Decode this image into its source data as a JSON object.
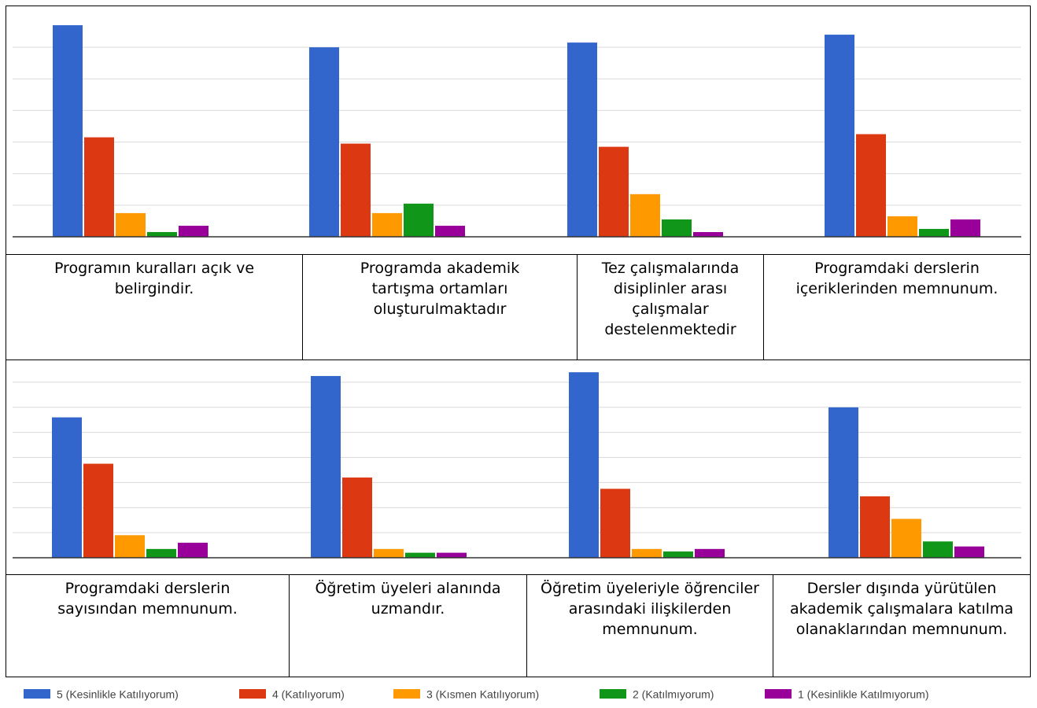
{
  "chart_data": [
    {
      "type": "bar",
      "categories": [
        "Programın kuralları açık ve belirgindir.",
        "Programda akademik tartışma ortamları oluşturulmaktadır",
        "Tez çalışmalarında disiplinler arası çalışmalar destelenmektedir",
        "Programdaki derslerin içeriklerinden memnunum."
      ],
      "series": [
        {
          "name": "5 (Kesinlikle Katılıyorum)",
          "color": "#3366cc",
          "values": [
            67,
            60,
            61.5,
            64
          ]
        },
        {
          "name": "4 (Katılıyorum)",
          "color": "#dc3912",
          "values": [
            31.5,
            29.5,
            28.5,
            32.5
          ]
        },
        {
          "name": "3 (Kısmen Katılıyorum)",
          "color": "#ff9900",
          "values": [
            7.5,
            7.5,
            13.5,
            6.5
          ]
        },
        {
          "name": "2 (Katılmıyorum)",
          "color": "#109618",
          "values": [
            1.5,
            10.5,
            5.5,
            2.5
          ]
        },
        {
          "name": "1 (Kesinlikle Katılmıyorum)",
          "color": "#990099",
          "values": [
            3.5,
            3.5,
            1.5,
            5.5
          ]
        }
      ],
      "ylim": [
        0,
        70
      ],
      "grid": true
    },
    {
      "type": "bar",
      "categories": [
        "Programdaki derslerin sayısından memnunum.",
        "Öğretim üyeleri alanında uzmandır.",
        "Öğretim üyeleriyle öğrenciler arasındaki ilişkilerden memnunum.",
        "Dersler dışında yürütülen akademik çalışmalara katılma olanaklarından memnunum."
      ],
      "series": [
        {
          "name": "5 (Kesinlikle Katılıyorum)",
          "color": "#3366cc",
          "values": [
            56,
            72.5,
            74,
            60
          ]
        },
        {
          "name": "4 (Katılıyorum)",
          "color": "#dc3912",
          "values": [
            37.5,
            32,
            27.5,
            24.5
          ]
        },
        {
          "name": "3 (Kısmen Katılıyorum)",
          "color": "#ff9900",
          "values": [
            9,
            3.5,
            3.5,
            15.5
          ]
        },
        {
          "name": "2 (Katılmıyorum)",
          "color": "#109618",
          "values": [
            3.5,
            2,
            2.5,
            6.5
          ]
        },
        {
          "name": "1 (Kesinlikle Katılmıyorum)",
          "color": "#990099",
          "values": [
            6,
            2,
            3.5,
            4.5
          ]
        }
      ],
      "ylim": [
        0,
        75
      ],
      "grid": true
    }
  ],
  "labels_row1": [
    "Programın kuralları açık ve belirgindir.",
    "Programda akademik tartışma ortamları oluşturulmaktadır",
    "Tez çalışmalarında disiplinler arası çalışmalar destelenmektedir",
    "Programdaki derslerin içeriklerinden memnunum."
  ],
  "labels_row2": [
    "Programdaki derslerin sayısından memnunum.",
    "Öğretim üyeleri alanında uzmandır.",
    "Öğretim üyeleriyle öğrenciler arasındaki ilişkilerden memnunum.",
    "Dersler dışında yürütülen akademik çalışmalara katılma olanaklarından memnunum."
  ],
  "legend": [
    {
      "label": "5 (Kesinlikle Katılıyorum)",
      "color": "#3366cc"
    },
    {
      "label": "4 (Katılıyorum)",
      "color": "#dc3912"
    },
    {
      "label": "3 (Kısmen Katılıyorum)",
      "color": "#ff9900"
    },
    {
      "label": "2 (Katılmıyorum)",
      "color": "#109618"
    },
    {
      "label": "1 (Kesinlikle Katılmıyorum)",
      "color": "#990099"
    }
  ]
}
